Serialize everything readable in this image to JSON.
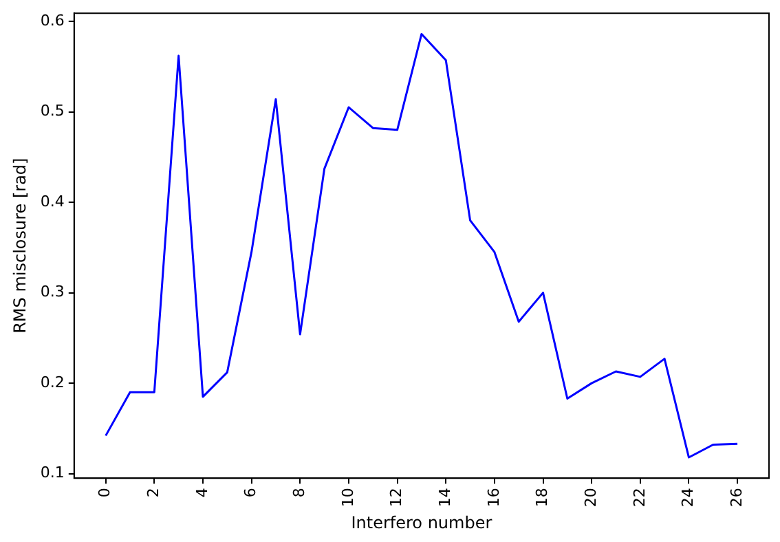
{
  "chart_data": {
    "type": "line",
    "xlabel": "Interfero number",
    "ylabel": "RMS misclosure [rad]",
    "x": [
      0,
      1,
      2,
      3,
      4,
      5,
      6,
      7,
      8,
      9,
      10,
      11,
      12,
      13,
      14,
      15,
      16,
      17,
      18,
      19,
      20,
      21,
      22,
      23,
      24,
      25,
      26
    ],
    "series": [
      {
        "color": "#0000ff",
        "values": [
          0.142,
          0.19,
          0.19,
          0.562,
          0.185,
          0.212,
          0.345,
          0.514,
          0.254,
          0.437,
          0.505,
          0.482,
          0.48,
          0.586,
          0.557,
          0.38,
          0.345,
          0.268,
          0.3,
          0.183,
          0.2,
          0.213,
          0.207,
          0.227,
          0.118,
          0.132,
          0.133
        ]
      }
    ],
    "xlim": [
      -1.3,
      27.3
    ],
    "ylim": [
      0.095,
      0.609
    ],
    "xticks": [
      0,
      2,
      4,
      6,
      8,
      10,
      12,
      14,
      16,
      18,
      20,
      22,
      24,
      26
    ],
    "yticks": [
      {
        "value": 0.1,
        "label": "0.1"
      },
      {
        "value": 0.2,
        "label": "0.2"
      },
      {
        "value": 0.3,
        "label": "0.3"
      },
      {
        "value": 0.4,
        "label": "0.4"
      },
      {
        "value": 0.5,
        "label": "0.5"
      },
      {
        "value": 0.6,
        "label": "0.6"
      }
    ],
    "grid": false,
    "legend": false,
    "marker": "none",
    "line_style": "solid"
  }
}
